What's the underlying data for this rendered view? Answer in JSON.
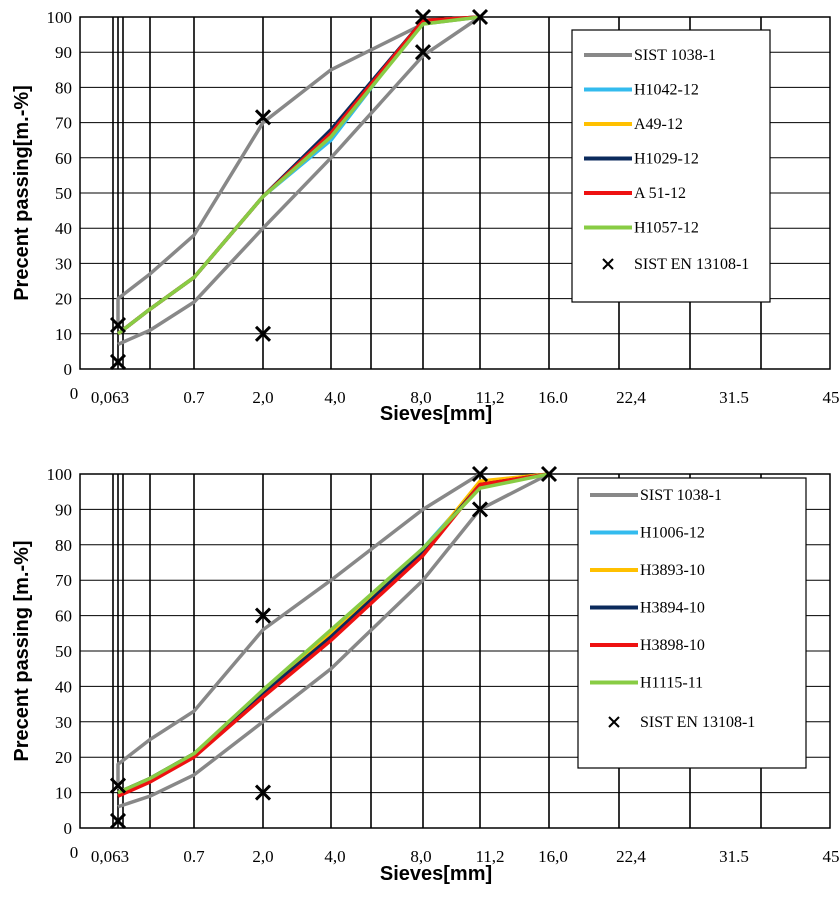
{
  "chart_data": [
    {
      "type": "line",
      "ylabel": "Precent passing[m.-%]",
      "xlabel": "Sieves[mm]",
      "x_origin_label": "0",
      "x_tick_labels": [
        "0,063",
        "0.7",
        "2,0",
        "4,0",
        "8,0",
        "11,2",
        "16.0",
        "22,4",
        "31.5",
        "45"
      ],
      "y_ticks": [
        0,
        10,
        20,
        30,
        40,
        50,
        60,
        70,
        80,
        90,
        100
      ],
      "ylim": [
        0,
        100
      ],
      "grid": true,
      "legend_position": "right",
      "series": [
        {
          "name": "SIST 1038-1",
          "color": "#888888",
          "points": [
            [
              "0,063",
              12
            ],
            [
              "0,063",
              20
            ],
            [
              "0,25",
              27
            ],
            [
              "0.7",
              38
            ],
            [
              "2,0",
              70
            ],
            [
              "4,0",
              85
            ],
            [
              "8,0",
              98
            ],
            [
              "11,2",
              100
            ]
          ]
        },
        {
          "name": "",
          "color": "#888888",
          "points": [
            [
              "0,063",
              7
            ],
            [
              "0,25",
              11
            ],
            [
              "0.7",
              19
            ],
            [
              "2,0",
              40
            ],
            [
              "4,0",
              60
            ],
            [
              "8,0",
              89
            ],
            [
              "11,2",
              100
            ]
          ]
        },
        {
          "name": "H1042-12",
          "color": "#33bbee",
          "points": [
            [
              "0,063",
              10
            ],
            [
              "0,25",
              17
            ],
            [
              "0.7",
              26
            ],
            [
              "2,0",
              49
            ],
            [
              "4,0",
              65
            ],
            [
              "8,0",
              99
            ],
            [
              "11,2",
              100
            ]
          ]
        },
        {
          "name": "A49-12",
          "color": "#ffc000",
          "points": [
            [
              "0,063",
              10
            ],
            [
              "0,25",
              17
            ],
            [
              "0.7",
              26
            ],
            [
              "2,0",
              49
            ],
            [
              "4,0",
              66
            ],
            [
              "8,0",
              99
            ],
            [
              "11,2",
              100
            ]
          ]
        },
        {
          "name": "H1029-12",
          "color": "#0b2a5c",
          "points": [
            [
              "0,063",
              10
            ],
            [
              "0,25",
              17
            ],
            [
              "0.7",
              26
            ],
            [
              "2,0",
              49
            ],
            [
              "4,0",
              68
            ],
            [
              "8,0",
              99
            ],
            [
              "11,2",
              100
            ]
          ]
        },
        {
          "name": "A 51-12",
          "color": "#ee1111",
          "points": [
            [
              "0,063",
              10
            ],
            [
              "0,25",
              17
            ],
            [
              "0.7",
              26
            ],
            [
              "2,0",
              49
            ],
            [
              "4,0",
              67
            ],
            [
              "8,0",
              99
            ],
            [
              "11,2",
              100
            ]
          ]
        },
        {
          "name": "H1057-12",
          "color": "#88cc44",
          "points": [
            [
              "0,063",
              10
            ],
            [
              "0,25",
              17
            ],
            [
              "0.7",
              26
            ],
            [
              "2,0",
              49
            ],
            [
              "4,0",
              66
            ],
            [
              "8,0",
              98
            ],
            [
              "11,2",
              100
            ]
          ]
        }
      ],
      "markers": {
        "name": "SIST EN 13108-1",
        "symbol": "×",
        "points": [
          [
            "0,063",
            12.5
          ],
          [
            "0,063",
            2
          ],
          [
            "2,0",
            71.5
          ],
          [
            "2,0",
            10
          ],
          [
            "8,0",
            100
          ],
          [
            "8,0",
            90
          ],
          [
            "11,2",
            100
          ]
        ]
      }
    },
    {
      "type": "line",
      "ylabel": "Precent passing [m.-%]",
      "xlabel": "Sieves[mm]",
      "x_origin_label": "0",
      "x_tick_labels": [
        "0,063",
        "0.7",
        "2,0",
        "4,0",
        "8,0",
        "11,2",
        "16,0",
        "22,4",
        "31.5",
        "45"
      ],
      "y_ticks": [
        0,
        10,
        20,
        30,
        40,
        50,
        60,
        70,
        80,
        90,
        100
      ],
      "ylim": [
        0,
        100
      ],
      "grid": true,
      "legend_position": "right",
      "series": [
        {
          "name": "SIST 1038-1",
          "color": "#888888",
          "points": [
            [
              "0,063",
              11
            ],
            [
              "0,063",
              18
            ],
            [
              "0,25",
              25
            ],
            [
              "0.7",
              33
            ],
            [
              "2,0",
              56
            ],
            [
              "4,0",
              70
            ],
            [
              "8,0",
              90
            ],
            [
              "11,2",
              100
            ]
          ]
        },
        {
          "name": "",
          "color": "#888888",
          "points": [
            [
              "0,063",
              6
            ],
            [
              "0,25",
              9
            ],
            [
              "0.7",
              15
            ],
            [
              "2,0",
              30
            ],
            [
              "4,0",
              45
            ],
            [
              "8,0",
              70
            ],
            [
              "11,2",
              90
            ],
            [
              "16,0",
              100
            ]
          ]
        },
        {
          "name": "H1006-12",
          "color": "#33bbee",
          "points": [
            [
              "0,063",
              10
            ],
            [
              "0,25",
              14
            ],
            [
              "0.7",
              21
            ],
            [
              "2,0",
              38
            ],
            [
              "4,0",
              55
            ],
            [
              "8,0",
              79
            ],
            [
              "11,2",
              97
            ],
            [
              "16,0",
              100
            ]
          ]
        },
        {
          "name": "H3893-10",
          "color": "#ffc000",
          "points": [
            [
              "0,063",
              10
            ],
            [
              "0,25",
              14
            ],
            [
              "0.7",
              21
            ],
            [
              "2,0",
              38
            ],
            [
              "4,0",
              55
            ],
            [
              "8,0",
              78
            ],
            [
              "11,2",
              98
            ],
            [
              "16,0",
              100
            ]
          ]
        },
        {
          "name": "H3894-10",
          "color": "#0b2a5c",
          "points": [
            [
              "0,063",
              10
            ],
            [
              "0,25",
              14
            ],
            [
              "0.7",
              21
            ],
            [
              "2,0",
              38
            ],
            [
              "4,0",
              54
            ],
            [
              "8,0",
              78
            ],
            [
              "11,2",
              97
            ],
            [
              "16,0",
              100
            ]
          ]
        },
        {
          "name": "H3898-10",
          "color": "#ee1111",
          "points": [
            [
              "0,063",
              9
            ],
            [
              "0,25",
              13
            ],
            [
              "0.7",
              20
            ],
            [
              "2,0",
              37
            ],
            [
              "4,0",
              53
            ],
            [
              "8,0",
              77
            ],
            [
              "11,2",
              97
            ],
            [
              "16,0",
              100
            ]
          ]
        },
        {
          "name": "H1115-11",
          "color": "#88cc44",
          "points": [
            [
              "0,063",
              10
            ],
            [
              "0,25",
              14
            ],
            [
              "0.7",
              21
            ],
            [
              "2,0",
              39
            ],
            [
              "4,0",
              56
            ],
            [
              "8,0",
              79
            ],
            [
              "11,2",
              96
            ],
            [
              "16,0",
              100
            ]
          ]
        }
      ],
      "markers": {
        "name": "SIST EN 13108-1",
        "symbol": "×",
        "points": [
          [
            "0,063",
            12
          ],
          [
            "0,063",
            2
          ],
          [
            "2,0",
            60
          ],
          [
            "2,0",
            10
          ],
          [
            "11,2",
            100
          ],
          [
            "11,2",
            90
          ],
          [
            "16,0",
            100
          ]
        ]
      }
    }
  ]
}
